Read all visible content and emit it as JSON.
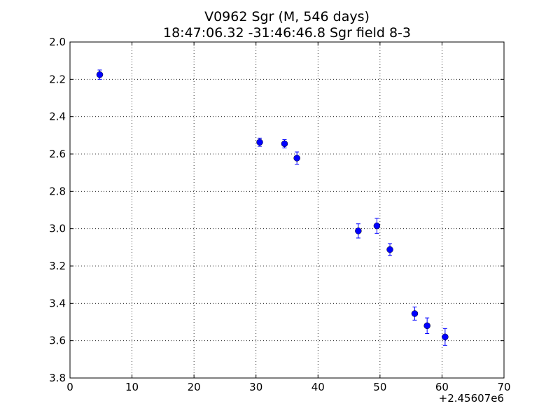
{
  "chart_data": {
    "type": "scatter",
    "title_line1": "V0962 Sgr  (M, 546 days)",
    "title_line2": "18:47:06.32 -31:46:46.8 Sgr field 8-3",
    "x_offset_label": "+2.45607e6",
    "xlim": [
      0,
      70
    ],
    "ylim": [
      2.0,
      3.8
    ],
    "y_inverted": true,
    "x_ticks": [
      0,
      10,
      20,
      30,
      40,
      50,
      60,
      70
    ],
    "x_tick_labels": [
      "0",
      "10",
      "20",
      "30",
      "40",
      "50",
      "60",
      "70"
    ],
    "y_ticks": [
      2.0,
      2.2,
      2.4,
      2.6,
      2.8,
      3.0,
      3.2,
      3.4,
      3.6,
      3.8
    ],
    "y_tick_labels": [
      "2.0",
      "2.2",
      "2.4",
      "2.6",
      "2.8",
      "3.0",
      "3.2",
      "3.4",
      "3.6",
      "3.8"
    ],
    "grid": true,
    "marker_color": "#0000ff",
    "points": [
      {
        "x": 4.8,
        "y": 2.175,
        "err": 0.025
      },
      {
        "x": 30.6,
        "y": 2.537,
        "err": 0.022
      },
      {
        "x": 34.6,
        "y": 2.545,
        "err": 0.022
      },
      {
        "x": 36.6,
        "y": 2.622,
        "err": 0.033
      },
      {
        "x": 46.5,
        "y": 3.012,
        "err": 0.038
      },
      {
        "x": 49.5,
        "y": 2.985,
        "err": 0.04
      },
      {
        "x": 51.6,
        "y": 3.112,
        "err": 0.032
      },
      {
        "x": 55.6,
        "y": 3.455,
        "err": 0.035
      },
      {
        "x": 57.6,
        "y": 3.52,
        "err": 0.042
      },
      {
        "x": 60.5,
        "y": 3.58,
        "err": 0.045
      }
    ]
  }
}
